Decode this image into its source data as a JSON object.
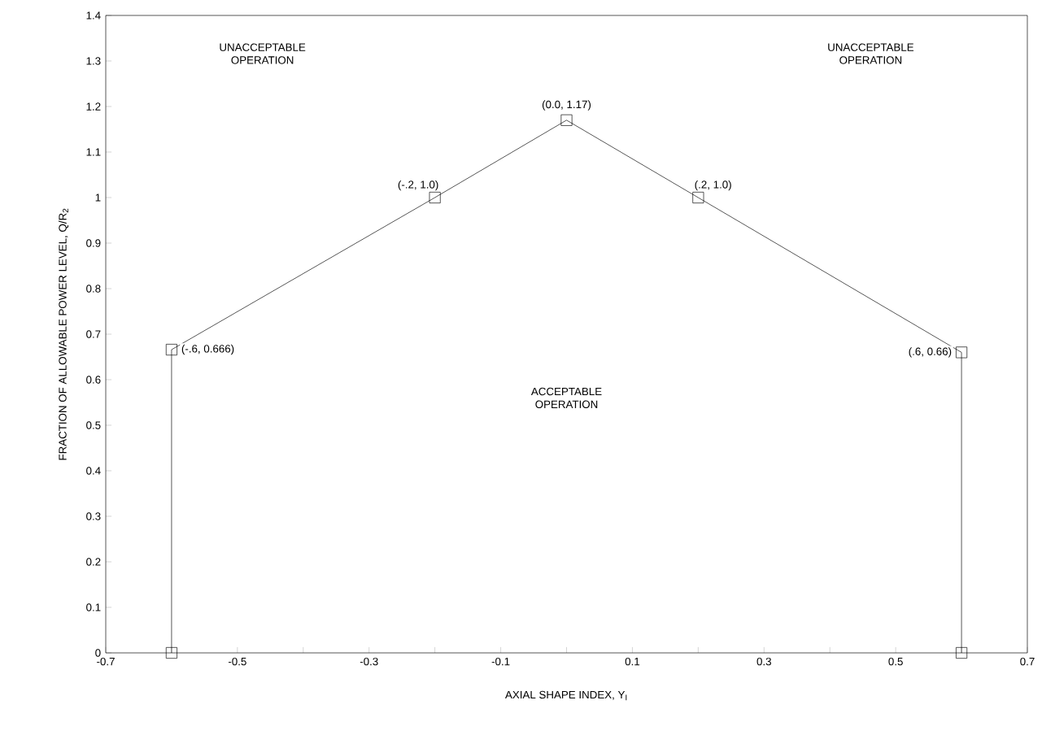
{
  "chart_data": {
    "type": "line",
    "xlabel": "AXIAL SHAPE INDEX, Y$_{I}$",
    "ylabel": "FRACTION OF ALLOWABLE POWER LEVEL, Q/R$_{2}$",
    "x": [
      -0.6,
      -0.6,
      -0.2,
      0.0,
      0.2,
      0.6,
      0.6
    ],
    "series": [
      {
        "color": "#000000",
        "values": [
          0,
          0.666,
          1.0,
          1.17,
          1.0,
          0.66,
          0
        ]
      }
    ],
    "xlim": [
      -0.7,
      0.7
    ],
    "xticks": [
      -0.7,
      {
        "value": -0.6,
        "label": null
      },
      -0.5,
      {
        "value": -0.4,
        "label": null
      },
      -0.3,
      {
        "value": -0.2,
        "label": null
      },
      -0.1,
      {
        "value": 0.0,
        "label": null
      },
      0.1,
      {
        "value": 0.2,
        "label": null
      },
      0.3,
      {
        "value": 0.4,
        "label": null
      },
      0.5,
      {
        "value": 0.6,
        "label": null
      },
      0.7
    ],
    "ylim": [
      0,
      1.4
    ],
    "yticks": [
      0,
      0.1,
      0.2,
      0.3,
      0.4,
      0.5,
      0.6,
      0.7,
      0.8,
      0.9,
      1,
      1.1,
      1.2,
      1.3,
      1.4
    ],
    "marker": "square",
    "line_style": "solid",
    "annotations": [
      {
        "text": "(-.6, 0.666)",
        "x": -0.6,
        "y": 0.666
      },
      {
        "text": "(-.2, 1.0)",
        "x": -0.2,
        "y": 1.0
      },
      {
        "text": "(0.0, 1.17)",
        "x": 0.0,
        "y": 1.17
      },
      {
        "text": "(.2, 1.0)",
        "x": 0.2,
        "y": 1.0
      },
      {
        "text": "(.6, 0.66)",
        "x": 0.6,
        "y": 0.66
      },
      "UNACCEPTABLE OPERATION",
      "UNACCEPTABLE OPERATION",
      "ACCEPTABLE OPERATION"
    ]
  }
}
